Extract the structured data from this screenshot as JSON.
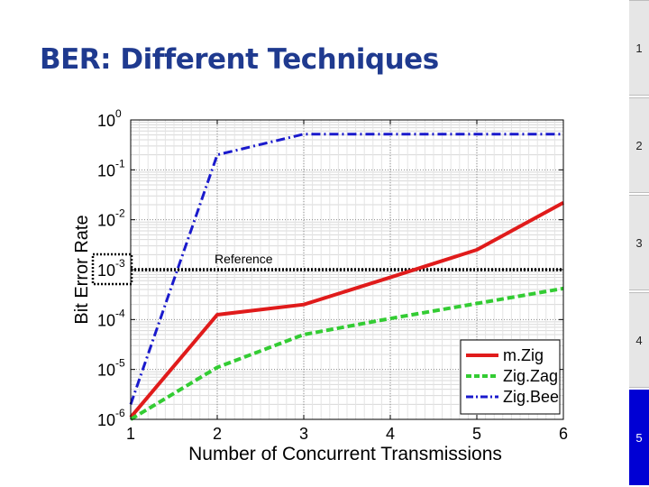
{
  "slide": {
    "title": "BER: Different Techniques"
  },
  "nav": {
    "items": [
      {
        "label": "1"
      },
      {
        "label": "2"
      },
      {
        "label": "3"
      },
      {
        "label": "4"
      },
      {
        "label": "5",
        "active": true
      }
    ]
  },
  "colors": {
    "title": "#1f3a8f",
    "nav_active": "#0000d4"
  },
  "chart_data": {
    "type": "line",
    "xlabel": "Number of Concurrent Transmissions",
    "ylabel": "Bit Error Rate",
    "x": [
      1,
      2,
      3,
      4,
      5,
      6
    ],
    "xlim": [
      1,
      6
    ],
    "ylim": [
      1e-06,
      1
    ],
    "yscale": "log",
    "xticks": [
      "1",
      "2",
      "3",
      "4",
      "5",
      "6"
    ],
    "yticks": [
      {
        "base": "10",
        "exp": "0"
      },
      {
        "base": "10",
        "exp": "-1"
      },
      {
        "base": "10",
        "exp": "-2"
      },
      {
        "base": "10",
        "exp": "-3"
      },
      {
        "base": "10",
        "exp": "-4"
      },
      {
        "base": "10",
        "exp": "-5"
      },
      {
        "base": "10",
        "exp": "-6"
      }
    ],
    "grid": true,
    "legend_position": "bottom-right",
    "series": [
      {
        "name": "m.Zig",
        "color": "#e01b1b",
        "style": "solid",
        "values": [
          1.1e-06,
          0.000125,
          0.0002,
          0.0007,
          0.0025,
          0.022
        ]
      },
      {
        "name": "Zig.Zag",
        "color": "#33cc33",
        "style": "dashed",
        "values": [
          1e-06,
          1.1e-05,
          5e-05,
          0.000105,
          0.00021,
          0.00042
        ]
      },
      {
        "name": "Zig.Bee",
        "color": "#1a1acc",
        "style": "dashdot",
        "values": [
          2e-06,
          0.2,
          0.52,
          0.52,
          0.52,
          0.52
        ]
      }
    ],
    "reference": {
      "label": "Reference",
      "value": 0.001,
      "color": "#000000"
    }
  }
}
